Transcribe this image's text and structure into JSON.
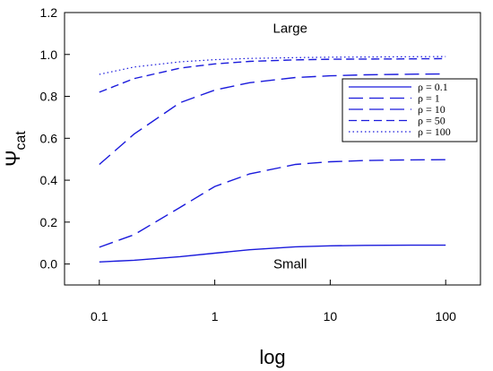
{
  "chart_data": {
    "type": "line",
    "xscale": "log",
    "xlim": [
      0.05,
      200
    ],
    "ylim": [
      -0.1,
      1.2
    ],
    "xticks": [
      0.1,
      1,
      10,
      100
    ],
    "xtick_labels": [
      "0.1",
      "1",
      "10",
      "100"
    ],
    "yticks": [
      0.0,
      0.2,
      0.4,
      0.6,
      0.8,
      1.0,
      1.2
    ],
    "ytick_labels": [
      "0.0",
      "0.2",
      "0.4",
      "0.6",
      "0.8",
      "1.0",
      "1.2"
    ],
    "xlabel": "log",
    "ylabel_main": "Ψ",
    "ylabel_sub": "cat",
    "legend_placement": "right",
    "grid": false,
    "line_color": "#1a1adc",
    "x": [
      0.1,
      0.2,
      0.5,
      1,
      2,
      5,
      10,
      20,
      50,
      100
    ],
    "series": [
      {
        "name": "ρ = 0.1",
        "dash": "solid",
        "values": [
          0.01,
          0.018,
          0.035,
          0.052,
          0.068,
          0.082,
          0.087,
          0.089,
          0.09,
          0.09
        ]
      },
      {
        "name": "ρ = 1",
        "dash": "long",
        "values": [
          0.08,
          0.14,
          0.27,
          0.37,
          0.43,
          0.475,
          0.488,
          0.494,
          0.497,
          0.498
        ]
      },
      {
        "name": "ρ = 10",
        "dash": "long",
        "values": [
          0.475,
          0.62,
          0.77,
          0.83,
          0.865,
          0.89,
          0.898,
          0.903,
          0.906,
          0.907
        ]
      },
      {
        "name": "ρ = 50",
        "dash": "medium",
        "values": [
          0.82,
          0.885,
          0.935,
          0.955,
          0.967,
          0.974,
          0.977,
          0.978,
          0.979,
          0.98
        ]
      },
      {
        "name": "ρ = 100",
        "dash": "dotted",
        "values": [
          0.905,
          0.94,
          0.965,
          0.975,
          0.981,
          0.985,
          0.987,
          0.988,
          0.989,
          0.99
        ]
      }
    ],
    "annotations": [
      {
        "text": "Large",
        "x": 4.5,
        "y": 1.125
      },
      {
        "text": "Small",
        "x": 4.5,
        "y": 0.0
      }
    ]
  }
}
